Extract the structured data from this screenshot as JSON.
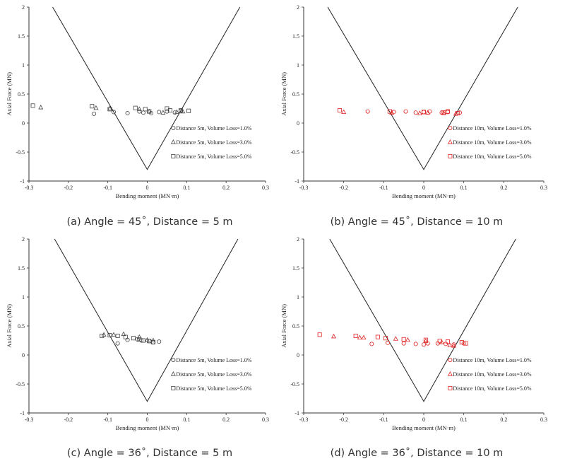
{
  "chart_data": [
    {
      "type": "scatter",
      "caption": "(a) Angle = 45˚, Distance = 5 m",
      "xlabel": "Bending moment (MN·m)",
      "ylabel": "Axial Force  (MN)",
      "xlim": [
        -0.3,
        0.3
      ],
      "ylim": [
        -1,
        2
      ],
      "xticks": [
        "-0.3",
        "-0.2",
        "-0.1",
        "0",
        "0.1",
        "0.2",
        "0.3"
      ],
      "yticks": [
        "-1",
        "-0.5",
        "0",
        "0.5",
        "1",
        "1.5",
        "2"
      ],
      "marker_color": "#444444",
      "envelope": {
        "x": [
          -0.24,
          0,
          0.235
        ],
        "y": [
          2,
          -0.8,
          2
        ]
      },
      "legend_placement": "bottom-right",
      "series": [
        {
          "name": "Distance 5m, Volume Loss=1.0%",
          "marker": "circle",
          "x": [
            -0.135,
            -0.085,
            -0.05,
            -0.02,
            -0.01,
            0.01,
            0.03,
            0.05,
            0.07,
            0.085
          ],
          "y": [
            0.16,
            0.19,
            0.17,
            0.2,
            0.18,
            0.17,
            0.19,
            0.2,
            0.18,
            0.21
          ]
        },
        {
          "name": "Distance 5m, Volume Loss=3.0%",
          "marker": "triangle",
          "x": [
            -0.27,
            -0.13,
            -0.095,
            -0.02,
            0.005,
            0.04,
            0.075,
            0.09
          ],
          "y": [
            0.27,
            0.26,
            0.25,
            0.24,
            0.2,
            0.18,
            0.19,
            0.2
          ],
          "y_approx": true
        },
        {
          "name": "Distance 5m, Volume Loss=5.0%",
          "marker": "square",
          "x": [
            -0.29,
            -0.14,
            -0.095,
            -0.03,
            -0.005,
            0.005,
            0.05,
            0.058,
            0.085,
            0.105
          ],
          "y": [
            0.3,
            0.29,
            0.24,
            0.26,
            0.24,
            0.2,
            0.25,
            0.22,
            0.22,
            0.21
          ]
        }
      ]
    },
    {
      "type": "scatter",
      "caption": "(b) Angle = 45˚, Distance = 10 m",
      "xlabel": "Bending moment (MN·m)",
      "ylabel": "Axial Force  (MN)",
      "xlim": [
        -0.3,
        0.3
      ],
      "ylim": [
        -1,
        2
      ],
      "xticks": [
        "-0.3",
        "-0.2",
        "-0.1",
        "0",
        "0.1",
        "0.2",
        "0.3"
      ],
      "yticks": [
        "-1",
        "-0.5",
        "0",
        "0.5",
        "1",
        "1.5",
        "2"
      ],
      "marker_color": "#e02020",
      "envelope": {
        "x": [
          -0.24,
          0,
          0.235
        ],
        "y": [
          2,
          -0.8,
          2
        ]
      },
      "legend_placement": "bottom-right",
      "series": [
        {
          "name": "Distance 10m, Volume Loss=1.0%",
          "marker": "circle",
          "x": [
            -0.14,
            -0.075,
            -0.045,
            -0.02,
            0.0,
            0.015,
            0.045,
            0.06,
            0.09
          ],
          "y": [
            0.2,
            0.19,
            0.2,
            0.18,
            0.19,
            0.2,
            0.18,
            0.19,
            0.18
          ]
        },
        {
          "name": "Distance 10m, Volume Loss=3.0%",
          "marker": "triangle",
          "x": [
            -0.2,
            -0.08,
            -0.01,
            0.01,
            0.05,
            0.08
          ],
          "y": [
            0.19,
            0.18,
            0.17,
            0.18,
            0.17,
            0.16
          ]
        },
        {
          "name": "Distance 10m, Volume Loss=5.0%",
          "marker": "square",
          "x": [
            -0.21,
            -0.085,
            0.0,
            0.05,
            0.06,
            0.085
          ],
          "y": [
            0.22,
            0.2,
            0.19,
            0.18,
            0.2,
            0.17
          ]
        }
      ]
    },
    {
      "type": "scatter",
      "caption": "(c) Angle = 36˚, Distance = 5 m",
      "xlabel": "Bending moment (MN·m)",
      "ylabel": "Axial Force  (MN)",
      "xlim": [
        -0.3,
        0.3
      ],
      "ylim": [
        -1,
        2
      ],
      "xticks": [
        "-0.3",
        "-0.2",
        "-0.1",
        "0",
        "0.1",
        "0.2",
        "0.3"
      ],
      "yticks": [
        "-1",
        "-0.5",
        "0",
        "0.5",
        "1",
        "1.5",
        "2"
      ],
      "marker_color": "#444444",
      "envelope": {
        "x": [
          -0.235,
          0,
          0.23
        ],
        "y": [
          2,
          -0.8,
          2
        ]
      },
      "legend_placement": "bottom-right",
      "series": [
        {
          "name": "Distance 5m, Volume Loss=1.0%",
          "marker": "circle",
          "x": [
            -0.075,
            -0.05,
            -0.025,
            -0.015,
            0.005,
            0.015,
            0.03
          ],
          "y": [
            0.2,
            0.26,
            0.27,
            0.25,
            0.24,
            0.22,
            0.23
          ]
        },
        {
          "name": "Distance 5m, Volume Loss=3.0%",
          "marker": "triangle",
          "x": [
            -0.11,
            -0.085,
            -0.06,
            -0.02,
            0.0,
            0.015
          ],
          "y": [
            0.35,
            0.35,
            0.36,
            0.31,
            0.26,
            0.25
          ]
        },
        {
          "name": "Distance 5m, Volume Loss=5.0%",
          "marker": "square",
          "x": [
            -0.115,
            -0.095,
            -0.075,
            -0.055,
            -0.035,
            -0.02,
            -0.01,
            0.005,
            0.015
          ],
          "y": [
            0.33,
            0.34,
            0.33,
            0.31,
            0.29,
            0.27,
            0.25,
            0.24,
            0.22
          ]
        }
      ]
    },
    {
      "type": "scatter",
      "caption": "(d) Angle = 36˚, Distance = 10 m",
      "xlabel": "Bending moment (MN·m)",
      "ylabel": "Axial Force  (MN)",
      "xlim": [
        -0.3,
        0.3
      ],
      "ylim": [
        -1,
        2
      ],
      "xticks": [
        "-0.3",
        "-0.2",
        "-0.1",
        "0",
        "0.1",
        "0.2",
        "0.3"
      ],
      "yticks": [
        "-1",
        "-0.5",
        "0",
        "0.5",
        "1",
        "1.5",
        "2"
      ],
      "marker_color": "#e02020",
      "envelope": {
        "x": [
          -0.235,
          0,
          0.23
        ],
        "y": [
          2,
          -0.8,
          2
        ]
      },
      "legend_placement": "bottom-right",
      "series": [
        {
          "name": "Distance 10m, Volume Loss=1.0%",
          "marker": "circle",
          "x": [
            -0.13,
            -0.09,
            -0.05,
            -0.02,
            0.0,
            0.01,
            0.035,
            0.055,
            0.075,
            0.1
          ],
          "y": [
            0.19,
            0.21,
            0.2,
            0.19,
            0.18,
            0.2,
            0.2,
            0.19,
            0.18,
            0.2
          ]
        },
        {
          "name": "Distance 10m, Volume Loss=3.0%",
          "marker": "triangle",
          "x": [
            -0.225,
            -0.16,
            -0.15,
            -0.07,
            -0.04,
            0.005,
            0.045,
            0.065,
            0.075
          ],
          "y": [
            0.32,
            0.3,
            0.3,
            0.28,
            0.26,
            0.24,
            0.22,
            0.17,
            0.16
          ]
        },
        {
          "name": "Distance 10m, Volume Loss=5.0%",
          "marker": "square",
          "x": [
            -0.26,
            -0.17,
            -0.115,
            -0.095,
            -0.05,
            0.005,
            0.04,
            0.06,
            0.095,
            0.105
          ],
          "y": [
            0.35,
            0.33,
            0.31,
            0.29,
            0.27,
            0.26,
            0.24,
            0.23,
            0.22,
            0.2
          ]
        }
      ]
    }
  ]
}
